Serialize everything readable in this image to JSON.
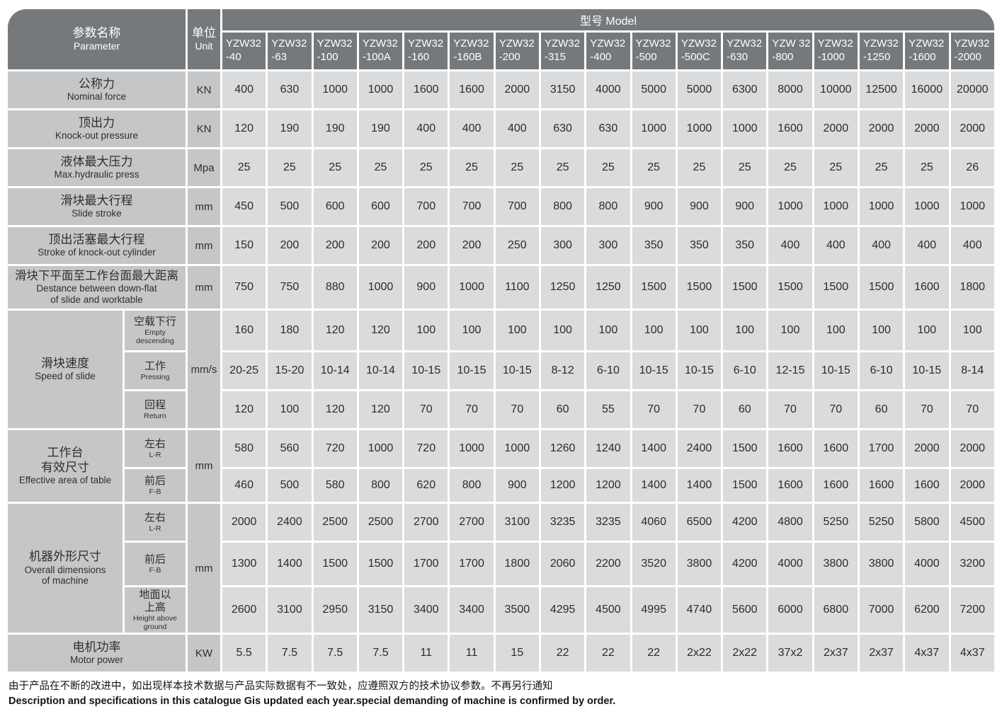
{
  "colors": {
    "header_bg": "#76797c",
    "label_bg": "#c5c6c8",
    "cell_bg": "#dadbdc",
    "header_text": "#ffffff",
    "cell_text": "#2b2b2b"
  },
  "header": {
    "parameter": {
      "zh": "参数名称",
      "en": "Parameter"
    },
    "unit": {
      "zh": "单位",
      "en": "Unit"
    },
    "model_group_label": "型号 Model",
    "models": [
      {
        "line1": "YZW32",
        "line2": "-40"
      },
      {
        "line1": "YZW32",
        "line2": "-63"
      },
      {
        "line1": "YZW32",
        "line2": "-100"
      },
      {
        "line1": "YZW32",
        "line2": "-100A"
      },
      {
        "line1": "YZW32",
        "line2": "-160"
      },
      {
        "line1": "YZW32",
        "line2": "-160B"
      },
      {
        "line1": "YZW32",
        "line2": "-200"
      },
      {
        "line1": "YZW32",
        "line2": "-315"
      },
      {
        "line1": "YZW32",
        "line2": "-400"
      },
      {
        "line1": "YZW32",
        "line2": "-500"
      },
      {
        "line1": "YZW32",
        "line2": "-500C"
      },
      {
        "line1": "YZW32",
        "line2": "-630"
      },
      {
        "line1": "YZW 32",
        "line2": "-800"
      },
      {
        "line1": "YZW32",
        "line2": "-1000"
      },
      {
        "line1": "YZW32",
        "line2": "-1250"
      },
      {
        "line1": "YZW32",
        "line2": "-1600"
      },
      {
        "line1": "YZW32",
        "line2": "-2000"
      }
    ]
  },
  "body": [
    {
      "key": "nominal-force",
      "name": {
        "zh": "公称力",
        "en": "Nominal force"
      },
      "unit": "KN",
      "values": [
        "400",
        "630",
        "1000",
        "1000",
        "1600",
        "1600",
        "2000",
        "3150",
        "4000",
        "5000",
        "5000",
        "6300",
        "8000",
        "10000",
        "12500",
        "16000",
        "20000"
      ]
    },
    {
      "key": "knockout-pressure",
      "name": {
        "zh": "顶出力",
        "en": "Knock-out pressure"
      },
      "unit": "KN",
      "values": [
        "120",
        "190",
        "190",
        "190",
        "400",
        "400",
        "400",
        "630",
        "630",
        "1000",
        "1000",
        "1000",
        "1600",
        "2000",
        "2000",
        "2000",
        "2000"
      ]
    },
    {
      "key": "max-hydraulic-press",
      "name": {
        "zh": "液体最大压力",
        "en": "Max.hydraulic press"
      },
      "unit": "Mpa",
      "values": [
        "25",
        "25",
        "25",
        "25",
        "25",
        "25",
        "25",
        "25",
        "25",
        "25",
        "25",
        "25",
        "25",
        "25",
        "25",
        "25",
        "26"
      ]
    },
    {
      "key": "slide-stroke",
      "name": {
        "zh": "滑块最大行程",
        "en": "Slide stroke"
      },
      "unit": "mm",
      "values": [
        "450",
        "500",
        "600",
        "600",
        "700",
        "700",
        "700",
        "800",
        "800",
        "900",
        "900",
        "900",
        "1000",
        "1000",
        "1000",
        "1000",
        "1000"
      ]
    },
    {
      "key": "knockout-cylinder-stroke",
      "name": {
        "zh": "顶出活塞最大行程",
        "en": "Stroke of knock-out cylinder"
      },
      "unit": "mm",
      "values": [
        "150",
        "200",
        "200",
        "200",
        "200",
        "200",
        "250",
        "300",
        "300",
        "350",
        "350",
        "350",
        "400",
        "400",
        "400",
        "400",
        "400"
      ]
    },
    {
      "key": "slide-worktable-distance",
      "name": {
        "zh": "滑块下平面至工作台面最大距离",
        "en": "Destance between down-flat\nof slide and worktable"
      },
      "unit": "mm",
      "values": [
        "750",
        "750",
        "880",
        "1000",
        "900",
        "1000",
        "1100",
        "1250",
        "1250",
        "1500",
        "1500",
        "1500",
        "1500",
        "1500",
        "1500",
        "1600",
        "1800"
      ]
    },
    {
      "key": "speed-of-slide",
      "name": {
        "zh": "滑块速度",
        "en": "Speed of slide"
      },
      "unit": "mm/s",
      "subrows": [
        {
          "key": "empty-descending",
          "label": {
            "zh": "空载下行",
            "en": "Empty\ndescending"
          },
          "values": [
            "160",
            "180",
            "120",
            "120",
            "100",
            "100",
            "100",
            "100",
            "100",
            "100",
            "100",
            "100",
            "100",
            "100",
            "100",
            "100",
            "100"
          ]
        },
        {
          "key": "pressing",
          "label": {
            "zh": "工作",
            "en": "Pressing"
          },
          "values": [
            "20-25",
            "15-20",
            "10-14",
            "10-14",
            "10-15",
            "10-15",
            "10-15",
            "8-12",
            "6-10",
            "10-15",
            "10-15",
            "6-10",
            "12-15",
            "10-15",
            "6-10",
            "10-15",
            "8-14"
          ]
        },
        {
          "key": "return",
          "label": {
            "zh": "回程",
            "en": "Return"
          },
          "values": [
            "120",
            "100",
            "120",
            "120",
            "70",
            "70",
            "70",
            "60",
            "55",
            "70",
            "70",
            "60",
            "70",
            "70",
            "60",
            "70",
            "70"
          ]
        }
      ]
    },
    {
      "key": "table-effective-area",
      "name": {
        "zh": "工作台\n有效尺寸",
        "en": "Effective area of table"
      },
      "unit": "mm",
      "subrows": [
        {
          "key": "table-lr",
          "label": {
            "zh": "左右",
            "en": "L-R"
          },
          "values": [
            "580",
            "560",
            "720",
            "1000",
            "720",
            "1000",
            "1000",
            "1260",
            "1240",
            "1400",
            "2400",
            "1500",
            "1600",
            "1600",
            "1700",
            "2000",
            "2000"
          ]
        },
        {
          "key": "table-fb",
          "label": {
            "zh": "前后",
            "en": "F-B"
          },
          "values": [
            "460",
            "500",
            "580",
            "800",
            "620",
            "800",
            "900",
            "1200",
            "1200",
            "1400",
            "1400",
            "1500",
            "1600",
            "1600",
            "1600",
            "1600",
            "2000"
          ]
        }
      ]
    },
    {
      "key": "overall-dimensions",
      "name": {
        "zh": "机器外形尺寸",
        "en": "Overall dimensions\nof machine"
      },
      "unit": "mm",
      "subrows": [
        {
          "key": "machine-lr",
          "label": {
            "zh": "左右",
            "en": "L-R"
          },
          "values": [
            "2000",
            "2400",
            "2500",
            "2500",
            "2700",
            "2700",
            "3100",
            "3235",
            "3235",
            "4060",
            "6500",
            "4200",
            "4800",
            "5250",
            "5250",
            "5800",
            "4500"
          ]
        },
        {
          "key": "machine-fb",
          "label": {
            "zh": "前后",
            "en": "F-B"
          },
          "values": [
            "1300",
            "1400",
            "1500",
            "1500",
            "1700",
            "1700",
            "1800",
            "2060",
            "2200",
            "3520",
            "3800",
            "4200",
            "4000",
            "3800",
            "3800",
            "4000",
            "3200"
          ]
        },
        {
          "key": "height-above-ground",
          "label": {
            "zh": "地面以\n上高",
            "en": "Height above\nground"
          },
          "values": [
            "2600",
            "3100",
            "2950",
            "3150",
            "3400",
            "3400",
            "3500",
            "4295",
            "4500",
            "4995",
            "4740",
            "5600",
            "6000",
            "6800",
            "7000",
            "6200",
            "7200"
          ]
        }
      ]
    },
    {
      "key": "motor-power",
      "name": {
        "zh": "电机功率",
        "en": "Motor power"
      },
      "unit": "KW",
      "values": [
        "5.5",
        "7.5",
        "7.5",
        "7.5",
        "11",
        "11",
        "15",
        "22",
        "22",
        "22",
        "2x22",
        "2x22",
        "37x2",
        "2x37",
        "2x37",
        "4x37",
        "4x37"
      ]
    }
  ],
  "footer": {
    "zh": "由于产品在不断的改进中，如出现样本技术数据与产品实际数据有不一致处，应遵照双方的技术协议参数。不再另行通知",
    "en": "Description and specifications in this catalogue Gis updated each year.special demanding of machine is confirmed by order."
  }
}
